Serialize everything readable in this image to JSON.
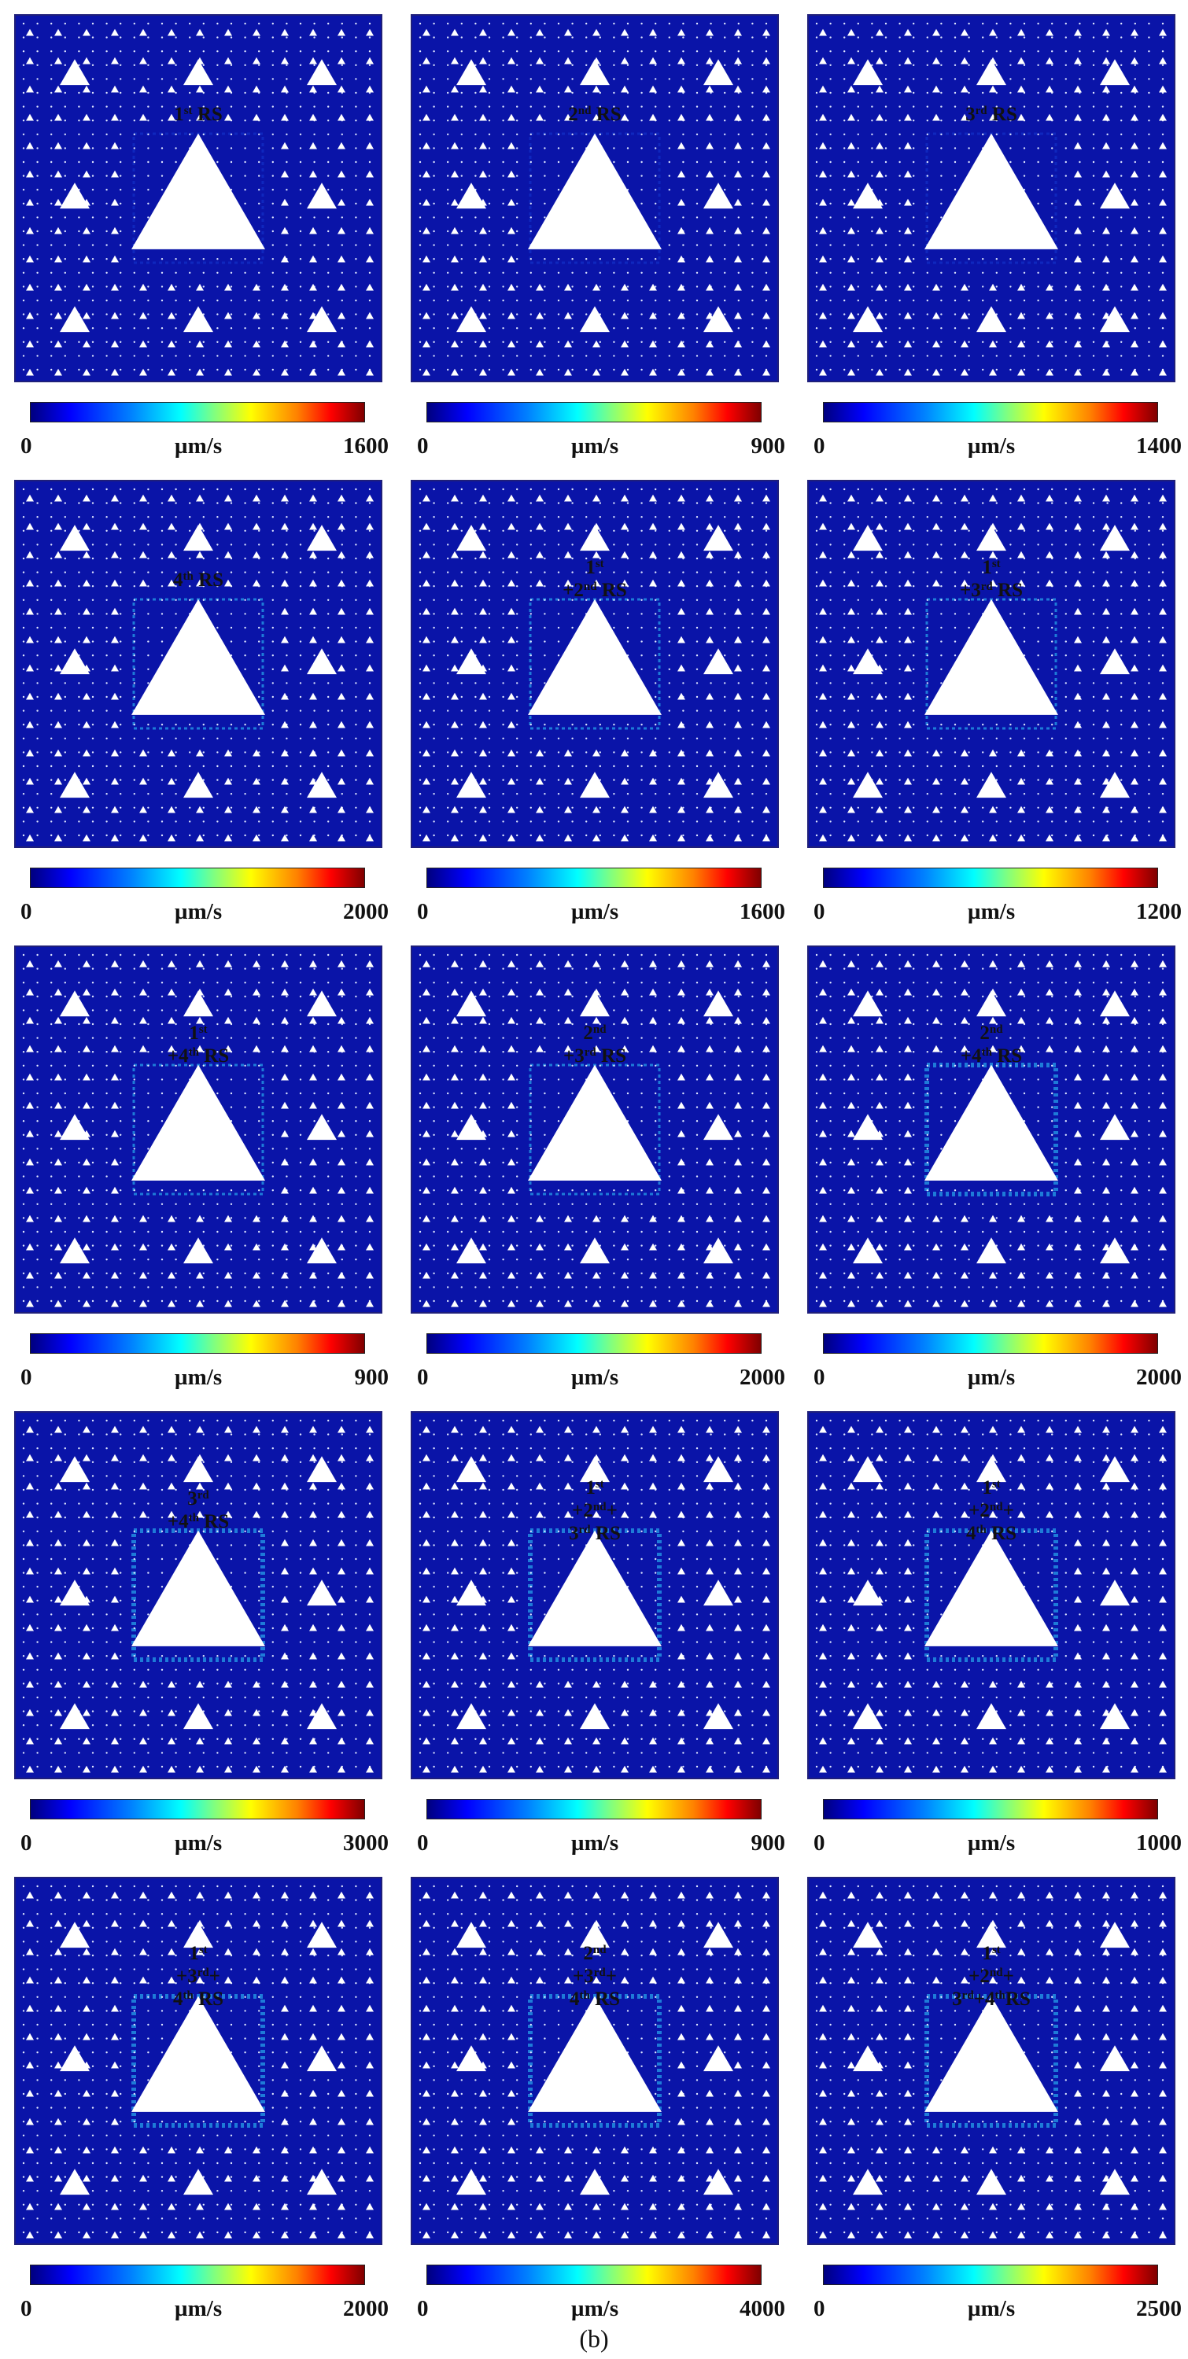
{
  "caption": "(b)",
  "unit": "µm/s",
  "colors": {
    "background_field": "#0a14a8",
    "frame": "#1f1f7a",
    "triangle": "#ffffff"
  },
  "panels": [
    {
      "label": [
        "1",
        "st",
        " RS"
      ],
      "min": "0",
      "max": "1600"
    },
    {
      "label": [
        "2",
        "nd",
        " RS"
      ],
      "min": "0",
      "max": "900"
    },
    {
      "label": [
        "3",
        "rd",
        " RS"
      ],
      "min": "0",
      "max": "1400"
    },
    {
      "label": [
        "4",
        "th",
        " RS"
      ],
      "min": "0",
      "max": "2000"
    },
    {
      "label": [
        "1",
        "st",
        "",
        "+2",
        "nd",
        " RS"
      ],
      "min": "0",
      "max": "1600"
    },
    {
      "label": [
        "1",
        "st",
        "",
        "+3",
        "rd",
        " RS"
      ],
      "min": "0",
      "max": "1200"
    },
    {
      "label": [
        "1",
        "st",
        "",
        "+4",
        "th",
        " RS"
      ],
      "min": "0",
      "max": "900"
    },
    {
      "label": [
        "2",
        "nd",
        "",
        "+3",
        "rd",
        " RS"
      ],
      "min": "0",
      "max": "2000"
    },
    {
      "label": [
        "2",
        "nd",
        "",
        "+4",
        "th",
        " RS"
      ],
      "min": "0",
      "max": "2000"
    },
    {
      "label": [
        "3",
        "rd",
        "",
        "+4",
        "th",
        " RS"
      ],
      "min": "0",
      "max": "3000"
    },
    {
      "label": [
        "1",
        "st",
        "",
        "+2",
        "nd",
        "+",
        "3",
        "rd",
        " RS"
      ],
      "min": "0",
      "max": "900"
    },
    {
      "label": [
        "1",
        "st",
        "",
        "+2",
        "nd",
        "+",
        "4",
        "th",
        " RS"
      ],
      "min": "0",
      "max": "1000"
    },
    {
      "label": [
        "1",
        "st",
        "",
        "+3",
        "rd",
        "+",
        "4",
        "th",
        " RS"
      ],
      "min": "0",
      "max": "2000"
    },
    {
      "label": [
        "2",
        "nd",
        "",
        "+3",
        "rd",
        "+",
        "4",
        "th",
        " RS"
      ],
      "min": "0",
      "max": "4000"
    },
    {
      "label": [
        "1",
        "st",
        "",
        "+2",
        "nd",
        "+",
        "3",
        "rd",
        "+4",
        "th",
        "RS"
      ],
      "min": "0",
      "max": "2500"
    }
  ]
}
